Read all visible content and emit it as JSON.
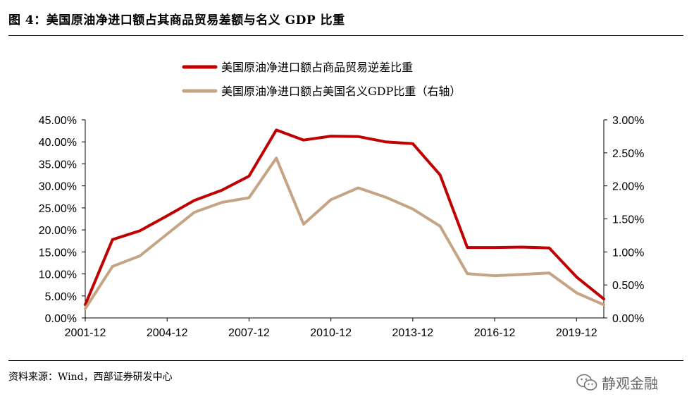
{
  "figure_title": "图 4：美国原油净进口额占其商品贸易差额与名义 GDP 比重",
  "source": "资料来源：Wind，西部证券研发中心",
  "watermark": {
    "text": "静观金融",
    "icon": "wechat-icon"
  },
  "colors": {
    "series1": "#c00000",
    "series2": "#c4a484",
    "axis": "#000000"
  },
  "chart_data": {
    "type": "line",
    "x": [
      "2001-12",
      "2002-12",
      "2003-12",
      "2004-12",
      "2005-12",
      "2006-12",
      "2007-12",
      "2008-12",
      "2009-12",
      "2010-12",
      "2011-12",
      "2012-12",
      "2013-12",
      "2014-12",
      "2015-12",
      "2016-12",
      "2017-12",
      "2018-12",
      "2019-12",
      "2020-12"
    ],
    "x_tick_labels": [
      "2001-12",
      "2004-12",
      "2007-12",
      "2010-12",
      "2013-12",
      "2016-12",
      "2019-12"
    ],
    "y_left": {
      "ylim": [
        0,
        0.45
      ],
      "tick_labels": [
        "0.00%",
        "5.00%",
        "10.00%",
        "15.00%",
        "20.00%",
        "25.00%",
        "30.00%",
        "35.00%",
        "40.00%",
        "45.00%"
      ]
    },
    "y_right": {
      "ylim": [
        0,
        0.03
      ],
      "tick_labels": [
        "0.00%",
        "0.50%",
        "1.00%",
        "1.50%",
        "2.00%",
        "2.50%",
        "3.00%"
      ]
    },
    "legend_placement": "top-center",
    "series": [
      {
        "name": "美国原油净进口额占商品贸易逆差比重",
        "axis": "left",
        "values": [
          0.03,
          0.178,
          0.198,
          0.232,
          0.267,
          0.29,
          0.322,
          0.427,
          0.404,
          0.413,
          0.412,
          0.4,
          0.396,
          0.325,
          0.16,
          0.16,
          0.161,
          0.159,
          0.093,
          0.043
        ]
      },
      {
        "name": "美国原油净进口额占美国名义GDP比重（右轴）",
        "axis": "right",
        "values": [
          0.0014,
          0.0078,
          0.0094,
          0.0127,
          0.016,
          0.0175,
          0.0182,
          0.0242,
          0.0142,
          0.0179,
          0.0197,
          0.0183,
          0.0165,
          0.0139,
          0.0067,
          0.0064,
          0.0066,
          0.0068,
          0.0038,
          0.002
        ]
      }
    ]
  }
}
